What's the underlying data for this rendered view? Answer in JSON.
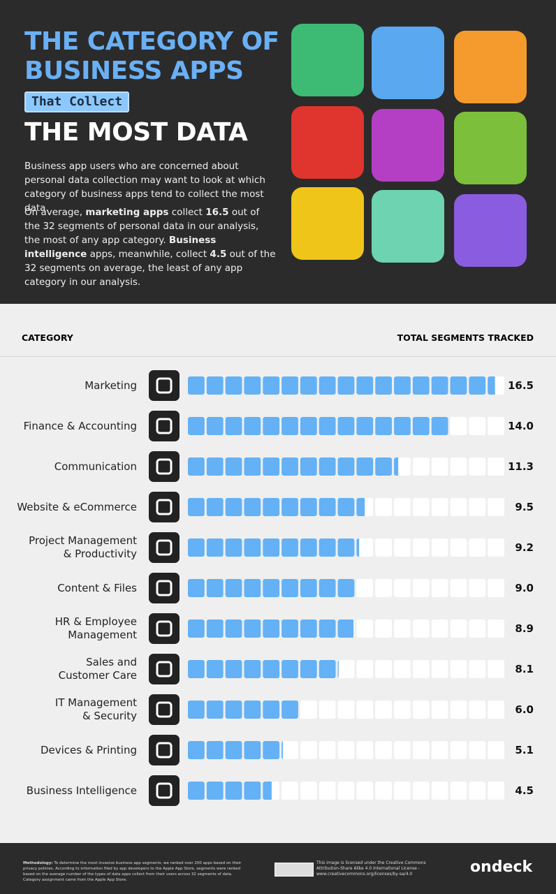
{
  "header": {
    "title_line1": "THE CATEGORY OF",
    "title_line2": "BUSINESS APPS",
    "title_tag": "That Collect",
    "title_line3": "THE MOST DATA",
    "intro": "Business app users who are concerned about personal data collection may want to look at which category of business apps tend to collect the most data.",
    "summary_parts": [
      "On average, ",
      "marketing apps",
      " collect ",
      "16.5",
      " out of the 32 segments of personal data in our analysis, the most of any app category. ",
      "Business intelligence",
      " apps, meanwhile, collect ",
      "4.5",
      " out of the 32 segments on average, the least of any app category in our analysis."
    ]
  },
  "chart_data": {
    "type": "bar",
    "orientation": "horizontal",
    "category_header": "CATEGORY",
    "value_header": "TOTAL SEGMENTS TRACKED",
    "categories": [
      "Marketing",
      "Finance & Accounting",
      "Communication",
      "Website & eCommerce",
      "Project Management\n& Productivity",
      "Content & Files",
      "HR & Employee\nManagement",
      "Sales and\nCustomer Care",
      "IT Management\n& Security",
      "Devices & Printing",
      "Business Intelligence"
    ],
    "values": [
      16.5,
      14.0,
      11.3,
      9.5,
      9.2,
      9.0,
      8.9,
      8.1,
      6.0,
      5.1,
      4.5
    ],
    "value_labels": [
      "16.5",
      "14.0",
      "11.3",
      "9.5",
      "9.2",
      "9.0",
      "8.9",
      "8.1",
      "6.0",
      "5.1",
      "4.5"
    ],
    "color": "#64b1f5",
    "xlim": [
      0,
      17
    ]
  },
  "footer": {
    "methodology_label": "Methodology:",
    "methodology": "To determine the most invasive business app segments, we ranked over 200 apps based on their privacy policies. According to information filed by app developers to the Apple App Store, segments were ranked based on the average number of the types of data apps collect from their users across 32 segments of data. Category assignment came from the Apple App Store.",
    "license": "This image is licensed under the Creative Commons Attribution-Share Alike 4.0 International License - www.creativecommons.org/licenses/by-sa/4.0",
    "brand": "ondeck"
  }
}
